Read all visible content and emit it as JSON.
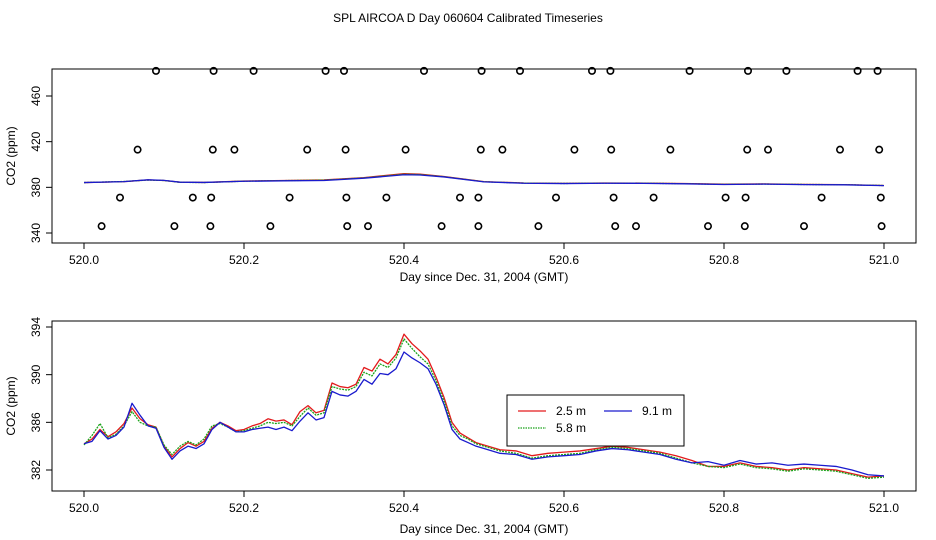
{
  "title": "SPL AIRCOA D  Day 060604  Calibrated Timeseries",
  "colors": {
    "2.5 m": "#e31a1c",
    "5.8 m": "#1aa31a",
    "9.1 m": "#1a1acd",
    "axis": "#000000",
    "marker": "#000000"
  },
  "chart_data": [
    {
      "type": "scatter",
      "title": "",
      "xlabel": "Day since Dec. 31, 2004 (GMT)",
      "ylabel": "CO2 (ppm)",
      "xlim": [
        520.0,
        521.0
      ],
      "ylim": [
        340,
        484
      ],
      "xticks": [
        "520.0",
        "520.2",
        "520.4",
        "520.6",
        "520.8",
        "521.0"
      ],
      "yticks": [
        "340",
        "380",
        "420",
        "460"
      ],
      "markers": {
        "shape": "open-circle",
        "points": [
          [
            520.09,
            482
          ],
          [
            520.162,
            482
          ],
          [
            520.212,
            482
          ],
          [
            520.302,
            482
          ],
          [
            520.325,
            482
          ],
          [
            520.425,
            482
          ],
          [
            520.497,
            482
          ],
          [
            520.545,
            482
          ],
          [
            520.635,
            482
          ],
          [
            520.658,
            482
          ],
          [
            520.757,
            482
          ],
          [
            520.83,
            482
          ],
          [
            520.878,
            482
          ],
          [
            520.967,
            482
          ],
          [
            520.992,
            482
          ],
          [
            520.067,
            413
          ],
          [
            520.161,
            413
          ],
          [
            520.188,
            413
          ],
          [
            520.279,
            413
          ],
          [
            520.327,
            413
          ],
          [
            520.402,
            413
          ],
          [
            520.496,
            413
          ],
          [
            520.523,
            413
          ],
          [
            520.613,
            413
          ],
          [
            520.659,
            413
          ],
          [
            520.733,
            413
          ],
          [
            520.829,
            413
          ],
          [
            520.855,
            413
          ],
          [
            520.945,
            413
          ],
          [
            520.994,
            413
          ],
          [
            520.045,
            371
          ],
          [
            520.136,
            371
          ],
          [
            520.159,
            371
          ],
          [
            520.257,
            371
          ],
          [
            520.328,
            371
          ],
          [
            520.378,
            371
          ],
          [
            520.47,
            371
          ],
          [
            520.493,
            371
          ],
          [
            520.59,
            371
          ],
          [
            520.662,
            371
          ],
          [
            520.712,
            371
          ],
          [
            520.802,
            371
          ],
          [
            520.827,
            371
          ],
          [
            520.922,
            371
          ],
          [
            520.996,
            371
          ],
          [
            520.022,
            346
          ],
          [
            520.113,
            346
          ],
          [
            520.158,
            346
          ],
          [
            520.233,
            346
          ],
          [
            520.329,
            346
          ],
          [
            520.355,
            346
          ],
          [
            520.447,
            346
          ],
          [
            520.493,
            346
          ],
          [
            520.568,
            346
          ],
          [
            520.664,
            346
          ],
          [
            520.69,
            346
          ],
          [
            520.78,
            346
          ],
          [
            520.826,
            346
          ],
          [
            520.9,
            346
          ],
          [
            520.997,
            346
          ]
        ]
      },
      "series": [
        {
          "name": "2.5 m",
          "x": [
            520.0,
            520.05,
            520.08,
            520.1,
            520.12,
            520.15,
            520.2,
            520.25,
            520.3,
            520.35,
            520.4,
            520.42,
            520.45,
            520.5,
            520.55,
            520.6,
            520.65,
            520.7,
            520.75,
            520.8,
            520.85,
            520.9,
            520.95,
            521.0
          ],
          "y": [
            384.2,
            385.0,
            386.5,
            386.0,
            384.5,
            384.3,
            385.5,
            386.0,
            386.5,
            388.5,
            392.0,
            391.5,
            389.5,
            385.0,
            383.8,
            383.5,
            383.8,
            383.7,
            383.3,
            382.8,
            383.0,
            382.6,
            382.4,
            381.6
          ]
        },
        {
          "name": "5.8 m",
          "x": [
            520.0,
            520.05,
            520.08,
            520.1,
            520.12,
            520.15,
            520.2,
            520.25,
            520.3,
            520.35,
            520.4,
            520.42,
            520.45,
            520.5,
            520.55,
            520.6,
            520.65,
            520.7,
            520.75,
            520.8,
            520.85,
            520.9,
            520.95,
            521.0
          ],
          "y": [
            384.2,
            385.1,
            386.4,
            386.0,
            384.4,
            384.2,
            385.4,
            385.9,
            386.3,
            388.3,
            391.5,
            391.2,
            389.3,
            384.9,
            383.7,
            383.4,
            383.7,
            383.6,
            383.2,
            382.6,
            382.9,
            382.5,
            382.3,
            381.6
          ]
        },
        {
          "name": "9.1 m",
          "x": [
            520.0,
            520.05,
            520.08,
            520.1,
            520.12,
            520.15,
            520.2,
            520.25,
            520.3,
            520.35,
            520.4,
            520.42,
            520.45,
            520.5,
            520.55,
            520.6,
            520.65,
            520.7,
            520.75,
            520.8,
            520.85,
            520.9,
            520.95,
            521.0
          ],
          "y": [
            384.2,
            385.0,
            386.6,
            386.1,
            384.5,
            384.3,
            385.3,
            385.7,
            386.0,
            388.0,
            391.0,
            390.8,
            389.1,
            384.8,
            383.6,
            383.3,
            383.6,
            383.5,
            383.1,
            382.5,
            382.8,
            382.4,
            382.2,
            381.5
          ]
        }
      ]
    },
    {
      "type": "line",
      "title": "",
      "xlabel": "Day since Dec. 31, 2004 (GMT)",
      "ylabel": "CO2 (ppm)",
      "xlim": [
        520.0,
        521.0
      ],
      "ylim": [
        380.6,
        394.6
      ],
      "xticks": [
        "520.0",
        "520.2",
        "520.4",
        "520.6",
        "520.8",
        "521.0"
      ],
      "yticks": [
        "382",
        "386",
        "390",
        "394"
      ],
      "legend": {
        "position": "center-right",
        "entries": [
          "2.5 m",
          "9.1 m",
          "5.8 m"
        ]
      },
      "series": [
        {
          "name": "2.5 m",
          "x": [
            520.0,
            520.01,
            520.02,
            520.03,
            520.04,
            520.05,
            520.06,
            520.07,
            520.08,
            520.09,
            520.1,
            520.11,
            520.12,
            520.13,
            520.14,
            520.15,
            520.16,
            520.17,
            520.18,
            520.19,
            520.2,
            520.21,
            520.22,
            520.23,
            520.24,
            520.25,
            520.26,
            520.27,
            520.28,
            520.29,
            520.3,
            520.31,
            520.32,
            520.33,
            520.34,
            520.35,
            520.36,
            520.37,
            520.38,
            520.39,
            520.4,
            520.41,
            520.42,
            520.43,
            520.44,
            520.45,
            520.46,
            520.47,
            520.48,
            520.49,
            520.5,
            520.52,
            520.54,
            520.56,
            520.58,
            520.6,
            520.62,
            520.64,
            520.66,
            520.68,
            520.7,
            520.72,
            520.74,
            520.76,
            520.78,
            520.8,
            520.82,
            520.84,
            520.86,
            520.88,
            520.9,
            520.92,
            520.94,
            520.96,
            520.98,
            521.0
          ],
          "y": [
            384.2,
            384.6,
            385.4,
            384.8,
            385.2,
            385.9,
            387.2,
            386.3,
            385.8,
            385.6,
            384.0,
            383.1,
            383.8,
            384.3,
            384.0,
            384.4,
            385.5,
            386.0,
            385.7,
            385.3,
            385.4,
            385.7,
            385.9,
            386.3,
            386.1,
            386.2,
            385.8,
            386.9,
            387.4,
            386.8,
            387.0,
            389.3,
            389.0,
            388.9,
            389.2,
            390.6,
            390.3,
            391.3,
            390.9,
            391.7,
            393.4,
            392.6,
            392.0,
            391.3,
            389.8,
            388.1,
            386.0,
            385.1,
            384.7,
            384.3,
            384.1,
            383.7,
            383.6,
            383.2,
            383.4,
            383.5,
            383.6,
            383.8,
            384.0,
            383.9,
            383.7,
            383.5,
            383.2,
            382.8,
            382.3,
            382.3,
            382.6,
            382.3,
            382.2,
            382.0,
            382.2,
            382.1,
            382.0,
            381.7,
            381.4,
            381.5
          ]
        },
        {
          "name": "5.8 m",
          "x": [
            520.0,
            520.01,
            520.02,
            520.03,
            520.04,
            520.05,
            520.06,
            520.07,
            520.08,
            520.09,
            520.1,
            520.11,
            520.12,
            520.13,
            520.14,
            520.15,
            520.16,
            520.17,
            520.18,
            520.19,
            520.2,
            520.21,
            520.22,
            520.23,
            520.24,
            520.25,
            520.26,
            520.27,
            520.28,
            520.29,
            520.3,
            520.31,
            520.32,
            520.33,
            520.34,
            520.35,
            520.36,
            520.37,
            520.38,
            520.39,
            520.4,
            520.41,
            520.42,
            520.43,
            520.44,
            520.45,
            520.46,
            520.47,
            520.48,
            520.49,
            520.5,
            520.52,
            520.54,
            520.56,
            520.58,
            520.6,
            520.62,
            520.64,
            520.66,
            520.68,
            520.7,
            520.72,
            520.74,
            520.76,
            520.78,
            520.8,
            520.82,
            520.84,
            520.86,
            520.88,
            520.9,
            520.92,
            520.94,
            520.96,
            520.98,
            521.0
          ],
          "y": [
            384.1,
            384.9,
            385.9,
            384.7,
            385.0,
            385.7,
            386.9,
            386.0,
            385.7,
            385.6,
            384.1,
            383.3,
            384.0,
            384.4,
            384.1,
            384.6,
            385.7,
            385.9,
            385.6,
            385.2,
            385.3,
            385.5,
            385.7,
            386.0,
            385.9,
            386.0,
            385.7,
            386.5,
            387.2,
            386.6,
            386.8,
            389.0,
            388.8,
            388.7,
            389.0,
            390.2,
            389.9,
            390.9,
            390.6,
            391.4,
            393.0,
            392.2,
            391.5,
            390.9,
            389.5,
            387.8,
            385.7,
            384.9,
            384.6,
            384.2,
            384.0,
            383.6,
            383.4,
            383.0,
            383.2,
            383.3,
            383.4,
            383.7,
            383.9,
            383.8,
            383.6,
            383.4,
            383.0,
            382.6,
            382.3,
            382.2,
            382.5,
            382.2,
            382.1,
            381.9,
            382.1,
            382.0,
            381.9,
            381.6,
            381.3,
            381.4
          ]
        },
        {
          "name": "9.1 m",
          "x": [
            520.0,
            520.01,
            520.02,
            520.03,
            520.04,
            520.05,
            520.06,
            520.07,
            520.08,
            520.09,
            520.1,
            520.11,
            520.12,
            520.13,
            520.14,
            520.15,
            520.16,
            520.17,
            520.18,
            520.19,
            520.2,
            520.21,
            520.22,
            520.23,
            520.24,
            520.25,
            520.26,
            520.27,
            520.28,
            520.29,
            520.3,
            520.31,
            520.32,
            520.33,
            520.34,
            520.35,
            520.36,
            520.37,
            520.38,
            520.39,
            520.4,
            520.41,
            520.42,
            520.43,
            520.44,
            520.45,
            520.46,
            520.47,
            520.48,
            520.49,
            520.5,
            520.52,
            520.54,
            520.56,
            520.58,
            520.6,
            520.62,
            520.64,
            520.66,
            520.68,
            520.7,
            520.72,
            520.74,
            520.76,
            520.78,
            520.8,
            520.82,
            520.84,
            520.86,
            520.88,
            520.9,
            520.92,
            520.94,
            520.96,
            520.98,
            521.0
          ],
          "y": [
            384.2,
            384.4,
            385.3,
            384.6,
            384.9,
            385.6,
            387.6,
            386.6,
            385.7,
            385.5,
            383.9,
            382.9,
            383.6,
            384.0,
            383.8,
            384.2,
            385.4,
            386.0,
            385.6,
            385.2,
            385.2,
            385.4,
            385.5,
            385.6,
            385.4,
            385.6,
            385.3,
            386.1,
            386.8,
            386.2,
            386.4,
            388.6,
            388.3,
            388.2,
            388.6,
            389.6,
            389.2,
            390.1,
            390.0,
            390.5,
            391.9,
            391.4,
            391.0,
            390.5,
            389.2,
            387.5,
            385.4,
            384.6,
            384.3,
            384.0,
            383.8,
            383.4,
            383.3,
            382.9,
            383.1,
            383.2,
            383.3,
            383.6,
            383.8,
            383.7,
            383.5,
            383.3,
            382.9,
            382.6,
            382.7,
            382.4,
            382.8,
            382.5,
            382.6,
            382.4,
            382.5,
            382.4,
            382.3,
            382.0,
            381.6,
            381.5
          ]
        }
      ]
    }
  ]
}
